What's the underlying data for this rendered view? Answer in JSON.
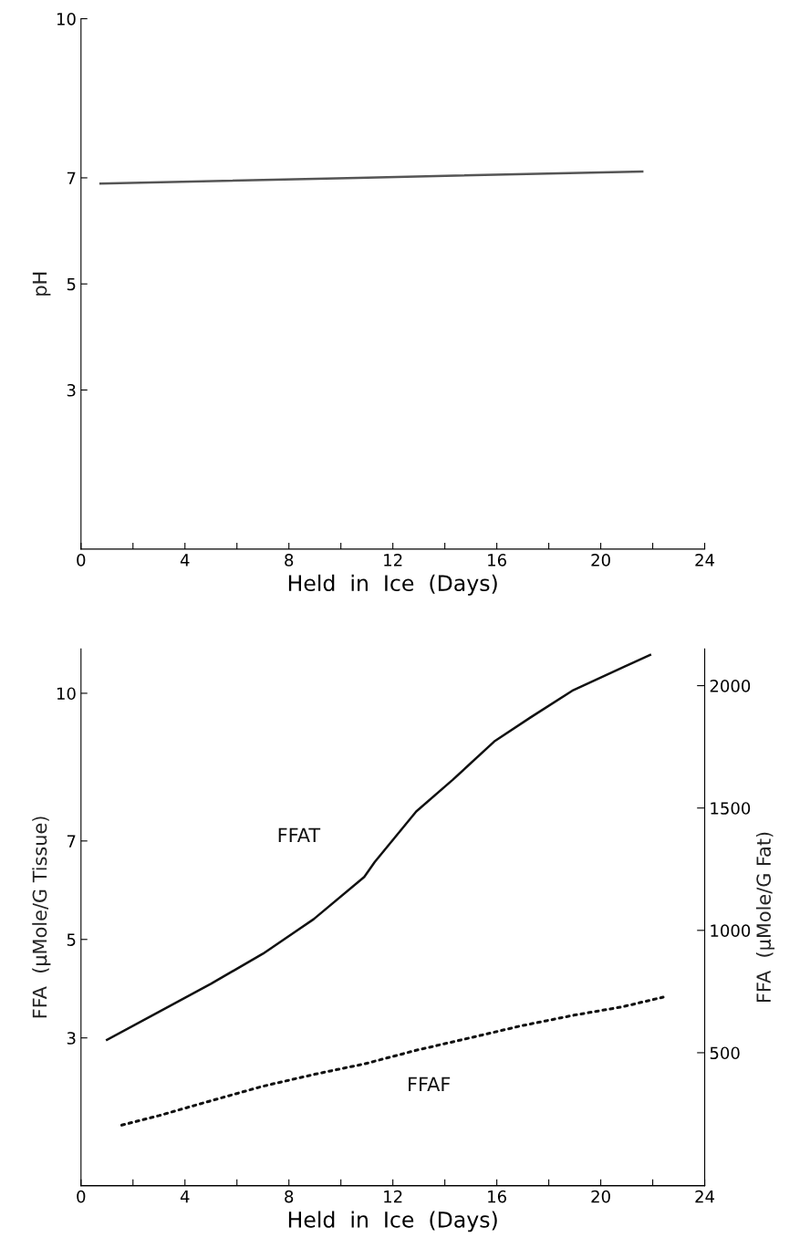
{
  "chart_data": [
    {
      "type": "line",
      "xlabel": "Held  in  Ice  (Days)",
      "ylabel": "pH",
      "xlim": [
        0,
        24
      ],
      "ylim": [
        0,
        10
      ],
      "xticks": [
        0,
        {
          "value": 2,
          "label": null
        },
        4,
        {
          "value": 6,
          "label": null
        },
        8,
        {
          "value": 10,
          "label": null
        },
        12,
        {
          "value": 14,
          "label": null
        },
        16,
        {
          "value": 18,
          "label": null
        },
        20,
        {
          "value": 22,
          "label": null
        },
        24
      ],
      "yticks": [
        3,
        5,
        7,
        10
      ],
      "grid": false,
      "legend": false,
      "marker": "none",
      "series": [
        {
          "color": "#555555",
          "line_style": "solid",
          "x": [
            0.75,
            10.65,
            21.6
          ],
          "values": [
            6.89,
            7.0,
            7.12
          ]
        }
      ]
    },
    {
      "type": "line",
      "xlabel": "Held  in  Ice  (Days)",
      "ylabel": "FFA  (μMole/G Tissue)",
      "y2label": "FFA  (μMole/G Fat)",
      "xlim": [
        0,
        24
      ],
      "ylim": [
        0,
        10.9
      ],
      "y2lim": [
        -43,
        2150
      ],
      "xticks": [
        0,
        {
          "value": 2,
          "label": null
        },
        4,
        {
          "value": 6,
          "label": null
        },
        8,
        {
          "value": 10,
          "label": null
        },
        12,
        {
          "value": 14,
          "label": null
        },
        16,
        {
          "value": 18,
          "label": null
        },
        20,
        {
          "value": 22,
          "label": null
        },
        24
      ],
      "yticks": [
        3,
        5,
        7,
        10
      ],
      "y2ticks": [
        500,
        1000,
        1500,
        2000
      ],
      "grid": false,
      "legend": false,
      "marker": "none",
      "series": [
        {
          "name": "FFAT",
          "color": "#111111",
          "line_style": "solid",
          "x": [
            1.0,
            3.0,
            5.0,
            7.0,
            8.95,
            10.9,
            11.3,
            12.9,
            14.3,
            15.9,
            17.3,
            18.9,
            20.9,
            21.9
          ],
          "values": [
            2.96,
            3.53,
            4.1,
            4.71,
            5.41,
            6.27,
            6.57,
            7.6,
            8.24,
            9.02,
            9.51,
            10.05,
            10.54,
            10.78
          ]
        },
        {
          "name": "FFAF",
          "color": "#111111",
          "line_style": "dotted",
          "axis": "y2",
          "x": [
            1.57,
            3.0,
            4.98,
            6.96,
            8.95,
            10.93,
            12.9,
            14.9,
            16.9,
            18.9,
            20.85,
            22.4
          ],
          "values": [
            204,
            243,
            303,
            362,
            411,
            455,
            510,
            559,
            609,
            652,
            688,
            727
          ]
        }
      ]
    }
  ]
}
